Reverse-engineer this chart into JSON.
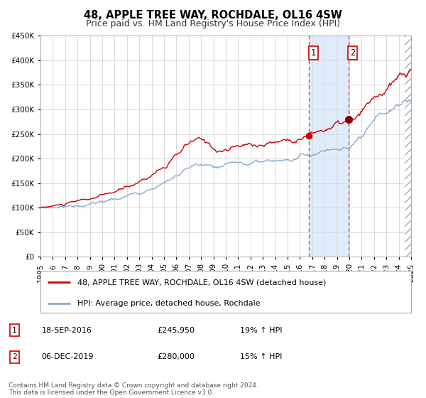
{
  "title": "48, APPLE TREE WAY, ROCHDALE, OL16 4SW",
  "subtitle": "Price paid vs. HM Land Registry's House Price Index (HPI)",
  "ylim": [
    0,
    450000
  ],
  "xlim_start": 1995.0,
  "xlim_end": 2025.0,
  "yticks": [
    0,
    50000,
    100000,
    150000,
    200000,
    250000,
    300000,
    350000,
    400000,
    450000
  ],
  "ytick_labels": [
    "£0",
    "£50K",
    "£100K",
    "£150K",
    "£200K",
    "£250K",
    "£300K",
    "£350K",
    "£400K",
    "£450K"
  ],
  "xticks": [
    1995,
    1996,
    1997,
    1998,
    1999,
    2000,
    2001,
    2002,
    2003,
    2004,
    2005,
    2006,
    2007,
    2008,
    2009,
    2010,
    2011,
    2012,
    2013,
    2014,
    2015,
    2016,
    2017,
    2018,
    2019,
    2020,
    2021,
    2022,
    2023,
    2024,
    2025
  ],
  "background_color": "#ffffff",
  "plot_bg_color": "#ffffff",
  "grid_color": "#cccccc",
  "red_line_color": "#cc0000",
  "blue_line_color": "#88aacc",
  "marker1_x": 2016.72,
  "marker1_y": 245950,
  "marker2_x": 2019.92,
  "marker2_y": 280000,
  "vline1_x": 2016.72,
  "vline2_x": 2019.92,
  "shade_x1": 2016.72,
  "shade_x2": 2019.92,
  "legend_label_red": "48, APPLE TREE WAY, ROCHDALE, OL16 4SW (detached house)",
  "legend_label_blue": "HPI: Average price, detached house, Rochdale",
  "table_row1": [
    "1",
    "18-SEP-2016",
    "£245,950",
    "19% ↑ HPI"
  ],
  "table_row2": [
    "2",
    "06-DEC-2019",
    "£280,000",
    "15% ↑ HPI"
  ],
  "footnote": "Contains HM Land Registry data © Crown copyright and database right 2024.\nThis data is licensed under the Open Government Licence v3.0.",
  "title_fontsize": 10.5,
  "subtitle_fontsize": 9,
  "tick_fontsize": 7.5,
  "legend_fontsize": 8,
  "table_fontsize": 8,
  "footnote_fontsize": 6.5
}
